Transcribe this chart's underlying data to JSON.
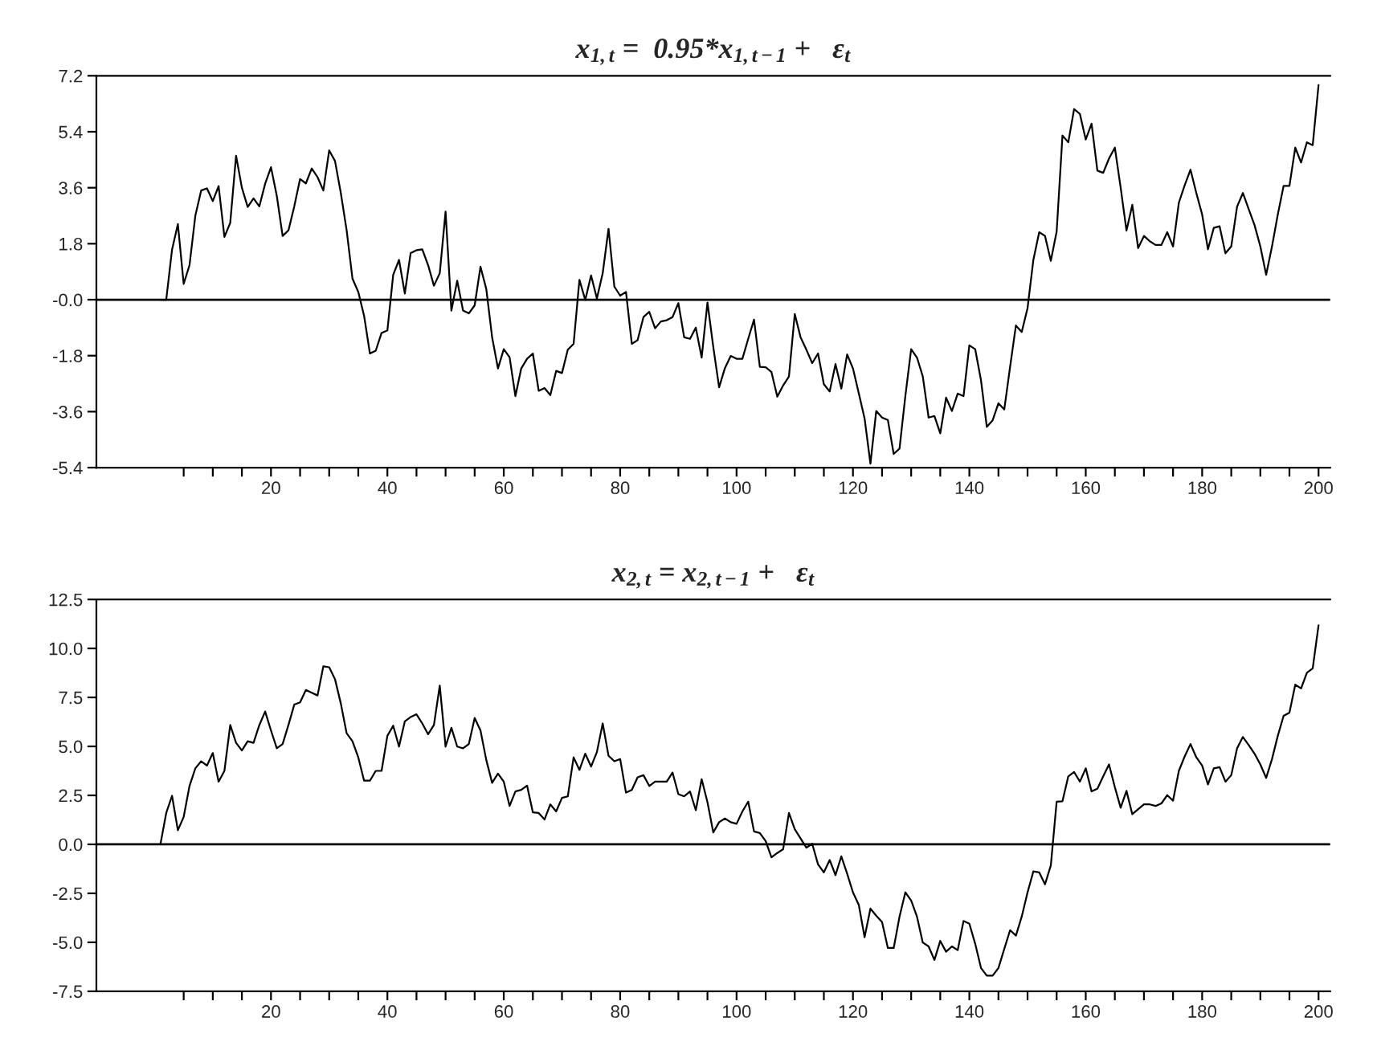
{
  "chart_data": [
    {
      "type": "line",
      "title": "x$_{1,t}$ =  0.95*x$_{1,t−1}$ +   ε$_{t}$",
      "grid": false,
      "legend": false,
      "marker": "none",
      "line_style": "solid",
      "xlim": [
        -10,
        202
      ],
      "ylim": [
        -5.4,
        7.2
      ],
      "xticks": [
        {
          "value": 5,
          "label": null
        },
        {
          "value": 10,
          "label": null
        },
        {
          "value": 15,
          "label": null
        },
        20,
        {
          "value": 25,
          "label": null
        },
        {
          "value": 30,
          "label": null
        },
        {
          "value": 35,
          "label": null
        },
        40,
        {
          "value": 45,
          "label": null
        },
        {
          "value": 50,
          "label": null
        },
        {
          "value": 55,
          "label": null
        },
        60,
        {
          "value": 65,
          "label": null
        },
        {
          "value": 70,
          "label": null
        },
        {
          "value": 75,
          "label": null
        },
        80,
        {
          "value": 85,
          "label": null
        },
        {
          "value": 90,
          "label": null
        },
        {
          "value": 95,
          "label": null
        },
        100,
        {
          "value": 105,
          "label": null
        },
        {
          "value": 110,
          "label": null
        },
        {
          "value": 115,
          "label": null
        },
        120,
        {
          "value": 125,
          "label": null
        },
        {
          "value": 130,
          "label": null
        },
        {
          "value": 135,
          "label": null
        },
        140,
        {
          "value": 145,
          "label": null
        },
        {
          "value": 150,
          "label": null
        },
        {
          "value": 155,
          "label": null
        },
        160,
        {
          "value": 165,
          "label": null
        },
        {
          "value": 170,
          "label": null
        },
        {
          "value": 175,
          "label": null
        },
        180,
        {
          "value": 185,
          "label": null
        },
        {
          "value": 190,
          "label": null
        },
        {
          "value": 195,
          "label": null
        },
        200
      ],
      "yticks": [
        7.2,
        5.4,
        3.6,
        1.8,
        {
          "value": 0,
          "label": "-0.0"
        },
        -1.8,
        -3.6,
        -5.4
      ],
      "ref_lines": [
        {
          "axis": "y",
          "value": 0,
          "color": "#000000"
        }
      ],
      "series": [
        {
          "color": "#000000",
          "x": [
            1,
            2,
            3,
            4,
            5,
            6,
            7,
            8,
            9,
            10,
            11,
            12,
            13,
            14,
            15,
            16,
            17,
            18,
            19,
            20,
            21,
            22,
            23,
            24,
            25,
            26,
            27,
            28,
            29,
            30,
            31,
            32,
            33,
            34,
            35,
            36,
            37,
            38,
            39,
            40,
            41,
            42,
            43,
            44,
            45,
            46,
            47,
            48,
            49,
            50,
            51,
            52,
            53,
            54,
            55,
            56,
            57,
            58,
            59,
            60,
            61,
            62,
            63,
            64,
            65,
            66,
            67,
            68,
            69,
            70,
            71,
            72,
            73,
            74,
            75,
            76,
            77,
            78,
            79,
            80,
            81,
            82,
            83,
            84,
            85,
            86,
            87,
            88,
            89,
            90,
            91,
            92,
            93,
            94,
            95,
            96,
            97,
            98,
            99,
            100,
            101,
            102,
            103,
            104,
            105,
            106,
            107,
            108,
            109,
            110,
            111,
            112,
            113,
            114,
            115,
            116,
            117,
            118,
            119,
            120,
            121,
            122,
            123,
            124,
            125,
            126,
            127,
            128,
            129,
            130,
            131,
            132,
            133,
            134,
            135,
            136,
            137,
            138,
            139,
            140,
            141,
            142,
            143,
            144,
            145,
            146,
            147,
            148,
            149,
            150,
            151,
            152,
            153,
            154,
            155,
            156,
            157,
            158,
            159,
            160,
            161,
            162,
            163,
            164,
            165,
            166,
            167,
            168,
            169,
            170,
            171,
            172,
            173,
            174,
            175,
            176,
            177,
            178,
            179,
            180,
            181,
            182,
            183,
            184,
            185,
            186,
            187,
            188,
            189,
            190,
            191,
            192,
            193,
            194,
            195,
            196,
            197,
            198,
            199,
            200
          ],
          "values": [
            0.0,
            0.0,
            1.61,
            2.43,
            0.51,
            1.11,
            2.7,
            3.51,
            3.58,
            3.17,
            3.65,
            2.02,
            2.47,
            4.63,
            3.6,
            2.98,
            3.26,
            3.0,
            3.73,
            4.26,
            3.34,
            2.05,
            2.23,
            3.0,
            3.88,
            3.74,
            4.22,
            3.94,
            3.51,
            4.8,
            4.46,
            3.43,
            2.23,
            0.68,
            0.25,
            -0.52,
            -1.73,
            -1.64,
            -1.07,
            -0.99,
            0.8,
            1.28,
            0.2,
            1.5,
            1.59,
            1.62,
            1.11,
            0.45,
            0.85,
            2.83,
            -0.35,
            0.61,
            -0.35,
            -0.44,
            -0.18,
            1.06,
            0.34,
            -1.21,
            -2.21,
            -1.59,
            -1.85,
            -3.1,
            -2.21,
            -1.9,
            -1.73,
            -2.93,
            -2.84,
            -3.07,
            -2.29,
            -2.36,
            -1.61,
            -1.42,
            0.64,
            -0.01,
            0.78,
            0.04,
            0.85,
            2.28,
            0.42,
            0.13,
            0.25,
            -1.42,
            -1.3,
            -0.56,
            -0.39,
            -0.92,
            -0.7,
            -0.66,
            -0.56,
            -0.11,
            -1.21,
            -1.26,
            -0.9,
            -1.86,
            -0.09,
            -1.52,
            -2.82,
            -2.2,
            -1.81,
            -1.9,
            -1.9,
            -1.26,
            -0.64,
            -2.16,
            -2.17,
            -2.33,
            -3.12,
            -2.76,
            -2.47,
            -0.46,
            -1.21,
            -1.61,
            -2.04,
            -1.73,
            -2.72,
            -2.95,
            -2.07,
            -2.86,
            -1.76,
            -2.21,
            -3.01,
            -3.82,
            -5.27,
            -3.58,
            -3.79,
            -3.87,
            -4.96,
            -4.79,
            -3.1,
            -1.59,
            -1.86,
            -2.47,
            -3.79,
            -3.74,
            -4.3,
            -3.15,
            -3.58,
            -3.02,
            -3.1,
            -1.47,
            -1.59,
            -2.59,
            -4.09,
            -3.88,
            -3.33,
            -3.53,
            -2.16,
            -0.83,
            -1.04,
            -0.27,
            1.28,
            2.17,
            2.05,
            1.25,
            2.19,
            5.28,
            5.06,
            6.13,
            5.97,
            5.15,
            5.66,
            4.15,
            4.08,
            4.54,
            4.89,
            3.6,
            2.22,
            3.05,
            1.66,
            2.05,
            1.88,
            1.76,
            1.76,
            2.17,
            1.71,
            3.12,
            3.68,
            4.18,
            3.43,
            2.74,
            1.62,
            2.31,
            2.36,
            1.49,
            1.71,
            2.99,
            3.43,
            2.91,
            2.4,
            1.71,
            0.8,
            1.71,
            2.74,
            3.66,
            3.66,
            4.89,
            4.41,
            5.06,
            4.97,
            6.9
          ]
        }
      ]
    },
    {
      "type": "line",
      "title": "x$_{2,t}$ = x$_{2,t−1}$ +   ε$_{t}$",
      "grid": false,
      "legend": false,
      "marker": "none",
      "line_style": "solid",
      "xlim": [
        -10,
        202
      ],
      "ylim": [
        -7.5,
        12.5
      ],
      "xticks": [
        {
          "value": 5,
          "label": null
        },
        {
          "value": 10,
          "label": null
        },
        {
          "value": 15,
          "label": null
        },
        20,
        {
          "value": 25,
          "label": null
        },
        {
          "value": 30,
          "label": null
        },
        {
          "value": 35,
          "label": null
        },
        40,
        {
          "value": 45,
          "label": null
        },
        {
          "value": 50,
          "label": null
        },
        {
          "value": 55,
          "label": null
        },
        60,
        {
          "value": 65,
          "label": null
        },
        {
          "value": 70,
          "label": null
        },
        {
          "value": 75,
          "label": null
        },
        80,
        {
          "value": 85,
          "label": null
        },
        {
          "value": 90,
          "label": null
        },
        {
          "value": 95,
          "label": null
        },
        100,
        {
          "value": 105,
          "label": null
        },
        {
          "value": 110,
          "label": null
        },
        {
          "value": 115,
          "label": null
        },
        120,
        {
          "value": 125,
          "label": null
        },
        {
          "value": 130,
          "label": null
        },
        {
          "value": 135,
          "label": null
        },
        140,
        {
          "value": 145,
          "label": null
        },
        {
          "value": 150,
          "label": null
        },
        {
          "value": 155,
          "label": null
        },
        160,
        {
          "value": 165,
          "label": null
        },
        {
          "value": 170,
          "label": null
        },
        {
          "value": 175,
          "label": null
        },
        180,
        {
          "value": 185,
          "label": null
        },
        {
          "value": 190,
          "label": null
        },
        {
          "value": 195,
          "label": null
        },
        200
      ],
      "yticks": [
        12.5,
        {
          "value": 10,
          "label": "10.0"
        },
        7.5,
        {
          "value": 5,
          "label": "5.0"
        },
        2.5,
        {
          "value": 0,
          "label": "0.0"
        },
        -2.5,
        {
          "value": -5,
          "label": "-5.0"
        },
        -7.5
      ],
      "ref_lines": [
        {
          "axis": "y",
          "value": 0,
          "color": "#000000"
        }
      ],
      "series": [
        {
          "color": "#000000",
          "x": [
            1,
            2,
            3,
            4,
            5,
            6,
            7,
            8,
            9,
            10,
            11,
            12,
            13,
            14,
            15,
            16,
            17,
            18,
            19,
            20,
            21,
            22,
            23,
            24,
            25,
            26,
            27,
            28,
            29,
            30,
            31,
            32,
            33,
            34,
            35,
            36,
            37,
            38,
            39,
            40,
            41,
            42,
            43,
            44,
            45,
            46,
            47,
            48,
            49,
            50,
            51,
            52,
            53,
            54,
            55,
            56,
            57,
            58,
            59,
            60,
            61,
            62,
            63,
            64,
            65,
            66,
            67,
            68,
            69,
            70,
            71,
            72,
            73,
            74,
            75,
            76,
            77,
            78,
            79,
            80,
            81,
            82,
            83,
            84,
            85,
            86,
            87,
            88,
            89,
            90,
            91,
            92,
            93,
            94,
            95,
            96,
            97,
            98,
            99,
            100,
            101,
            102,
            103,
            104,
            105,
            106,
            107,
            108,
            109,
            110,
            111,
            112,
            113,
            114,
            115,
            116,
            117,
            118,
            119,
            120,
            121,
            122,
            123,
            124,
            125,
            126,
            127,
            128,
            129,
            130,
            131,
            132,
            133,
            134,
            135,
            136,
            137,
            138,
            139,
            140,
            141,
            142,
            143,
            144,
            145,
            146,
            147,
            148,
            149,
            150,
            151,
            152,
            153,
            154,
            155,
            156,
            157,
            158,
            159,
            160,
            161,
            162,
            163,
            164,
            165,
            166,
            167,
            168,
            170,
            171,
            172,
            173,
            174,
            175,
            176,
            177,
            178,
            179,
            180,
            181,
            182,
            183,
            184,
            185,
            186,
            187,
            188,
            189,
            190,
            191,
            192,
            193,
            194,
            195,
            196,
            197,
            198,
            199,
            200
          ],
          "values": [
            0.0,
            1.6,
            2.48,
            0.72,
            1.4,
            2.98,
            3.88,
            4.24,
            4.02,
            4.66,
            3.2,
            3.75,
            6.09,
            5.18,
            4.79,
            5.26,
            5.18,
            6.09,
            6.78,
            5.81,
            4.9,
            5.12,
            6.09,
            7.13,
            7.25,
            7.88,
            7.74,
            7.6,
            9.09,
            9.04,
            8.43,
            7.19,
            5.67,
            5.26,
            4.44,
            3.25,
            3.25,
            3.75,
            3.75,
            5.54,
            6.06,
            4.99,
            6.28,
            6.5,
            6.64,
            6.17,
            5.62,
            6.09,
            8.1,
            4.99,
            5.95,
            4.99,
            4.9,
            5.12,
            6.45,
            5.81,
            4.3,
            3.14,
            3.61,
            3.2,
            1.96,
            2.7,
            2.78,
            3.0,
            1.63,
            1.6,
            1.27,
            2.04,
            1.68,
            2.37,
            2.45,
            4.44,
            3.8,
            4.63,
            3.97,
            4.71,
            6.17,
            4.52,
            4.24,
            4.35,
            2.64,
            2.78,
            3.42,
            3.53,
            2.98,
            3.2,
            3.2,
            3.2,
            3.66,
            2.56,
            2.45,
            2.7,
            1.74,
            3.33,
            2.15,
            0.61,
            1.13,
            1.32,
            1.13,
            1.05,
            1.68,
            2.18,
            0.66,
            0.58,
            0.17,
            -0.66,
            -0.44,
            -0.25,
            1.6,
            0.77,
            0.3,
            -0.17,
            0.03,
            -1.02,
            -1.43,
            -0.8,
            -1.57,
            -0.61,
            -1.49,
            -2.45,
            -3.09,
            -4.74,
            -3.28,
            -3.64,
            -3.97,
            -5.29,
            -5.29,
            -3.69,
            -2.45,
            -2.87,
            -3.69,
            -5.01,
            -5.21,
            -5.9,
            -4.93,
            -5.48,
            -5.21,
            -5.4,
            -3.91,
            -4.05,
            -5.07,
            -6.31,
            -6.7,
            -6.7,
            -6.31,
            -5.34,
            -4.38,
            -4.66,
            -3.69,
            -2.45,
            -1.38,
            -1.43,
            -2.04,
            -1.07,
            2.18,
            2.2,
            3.47,
            3.69,
            3.2,
            3.88,
            2.7,
            2.84,
            3.47,
            4.08,
            2.92,
            1.87,
            2.73,
            1.54,
            2.04,
            2.04,
            1.96,
            2.09,
            2.51,
            2.23,
            3.75,
            4.49,
            5.12,
            4.44,
            4.02,
            3.06,
            3.88,
            3.94,
            3.2,
            3.53,
            4.9,
            5.48,
            5.07,
            4.63,
            4.08,
            3.39,
            4.35,
            5.54,
            6.56,
            6.72,
            8.15,
            7.96,
            8.76,
            8.98,
            11.18
          ]
        }
      ]
    }
  ]
}
